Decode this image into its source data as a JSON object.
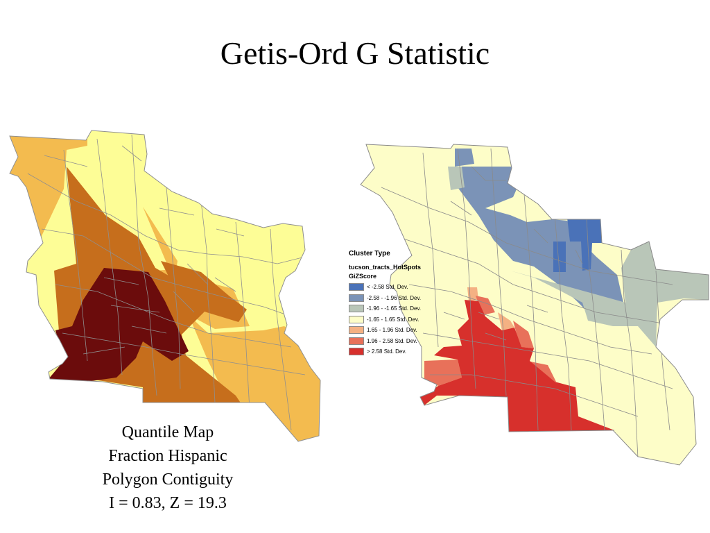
{
  "title": "Getis-Ord G Statistic",
  "left_map": {
    "caption": [
      "Quantile Map",
      "Fraction Hispanic",
      "Polygon Contiguity",
      "I = 0.83, Z = 19.3"
    ],
    "class_colors": [
      "#fdfd96",
      "#f3bb4f",
      "#c66e1c",
      "#6b0c0c"
    ]
  },
  "right_map": {
    "legend": {
      "title": "Cluster Type",
      "layer": "tucson_tracts_HotSpots",
      "field": "GiZScore",
      "items": [
        {
          "label": "< -2.58 Std. Dev.",
          "color": "#4a72b8"
        },
        {
          "label": "-2.58 - -1.96 Std. Dev.",
          "color": "#7b93b7"
        },
        {
          "label": "-1.96 - -1.65 Std. Dev.",
          "color": "#b9c6b8"
        },
        {
          "label": "-1.65 - 1.65 Std. Dev.",
          "color": "#fdfdc8"
        },
        {
          "label": "1.65 - 1.96 Std. Dev.",
          "color": "#f4b183"
        },
        {
          "label": "1.96 - 2.58 Std. Dev.",
          "color": "#e8715a"
        },
        {
          "label": "> 2.58 Std. Dev.",
          "color": "#d7302c"
        }
      ]
    }
  }
}
